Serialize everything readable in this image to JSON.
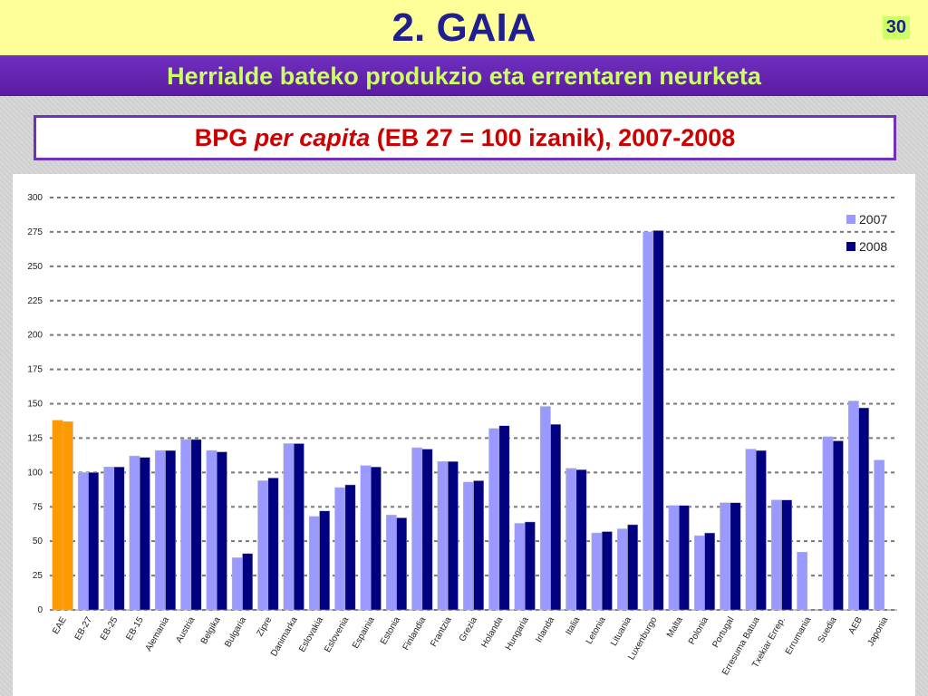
{
  "header": {
    "title": "2. GAIA",
    "page_number": "30",
    "subtitle": "Herrialde bateko produkzio eta errentaren neurketa"
  },
  "chart_data": {
    "type": "bar",
    "title": {
      "lead": "BPG ",
      "italic": "per capita",
      "rest": " (EB 27 = 100 izanik), 2007-2008"
    },
    "categories": [
      "EAE",
      "EB-27",
      "EB-25",
      "EB-15",
      "Alemania",
      "Austria",
      "Belgika",
      "Bulgaria",
      "Zipre",
      "Danimarka",
      "Eslovakia",
      "Eslovenia",
      "Espainia",
      "Estonia",
      "Finlandia",
      "Frantzia",
      "Grezia",
      "Holanda",
      "Hungaria",
      "Irlanda",
      "Italia",
      "Letonia",
      "Lituania",
      "Luxenburgo",
      "Malta",
      "Polonia",
      "Portugal",
      "Erresuma Batua",
      "Txekiar Errep.",
      "Errumania",
      "Suedia",
      "AEB",
      "Japonia"
    ],
    "series": [
      {
        "name": "2007",
        "color": "#9999ff",
        "values": [
          138,
          100,
          104,
          112,
          116,
          124,
          116,
          38,
          94,
          121,
          68,
          89,
          105,
          69,
          118,
          108,
          93,
          132,
          63,
          148,
          103,
          56,
          59,
          275,
          76,
          54,
          78,
          117,
          80,
          42,
          126,
          152,
          109
        ]
      },
      {
        "name": "2008",
        "color": "#000080",
        "values": [
          137,
          100,
          104,
          111,
          116,
          124,
          115,
          41,
          96,
          121,
          72,
          91,
          104,
          67,
          117,
          108,
          94,
          134,
          64,
          135,
          102,
          57,
          62,
          276,
          76,
          56,
          78,
          116,
          80,
          null,
          123,
          147,
          null
        ]
      }
    ],
    "highlight": {
      "category": "EAE",
      "color": "#ff9900"
    },
    "ylim": [
      0,
      300
    ],
    "yticks": [
      0,
      25,
      50,
      75,
      100,
      125,
      150,
      175,
      200,
      225,
      250,
      275,
      300
    ],
    "grid": true,
    "legend": "top-right"
  }
}
